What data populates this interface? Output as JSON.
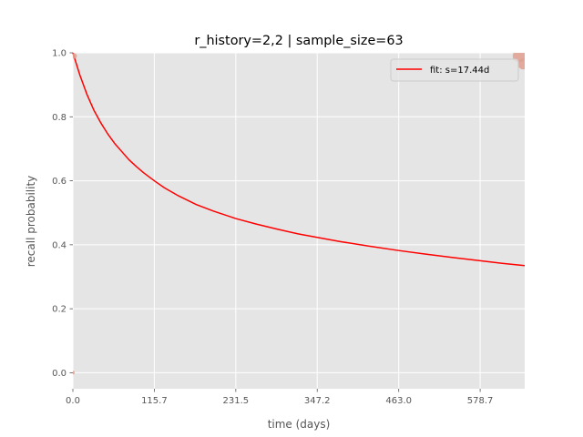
{
  "chart_data": {
    "type": "line",
    "title": "r_history=2,2 | sample_size=63",
    "xlabel": "time (days)",
    "ylabel": "recall probability",
    "xlim": [
      0,
      642
    ],
    "ylim": [
      -0.05,
      1.0
    ],
    "xticks": [
      0.0,
      115.7,
      231.5,
      347.2,
      463.0,
      578.7
    ],
    "xtick_labels": [
      "0.0",
      "115.7",
      "231.5",
      "347.2",
      "463.0",
      "578.7"
    ],
    "yticks": [
      0.0,
      0.2,
      0.4,
      0.6,
      0.8,
      1.0
    ],
    "ytick_labels": [
      "0.0",
      "0.2",
      "0.4",
      "0.6",
      "0.8",
      "1.0"
    ],
    "grid": true,
    "legend_position": "top-right",
    "series": [
      {
        "name": "fit: s=17.44d",
        "color": "#ff0000",
        "kind": "line",
        "x": [
          0,
          10,
          20,
          30,
          40,
          50,
          60,
          70,
          80,
          90,
          100,
          115.7,
          130,
          150,
          175,
          200,
          231.5,
          260,
          290,
          320,
          347.2,
          380,
          420,
          463.0,
          500,
          540,
          578.7,
          610,
          642
        ],
        "y": [
          1.0,
          0.93,
          0.87,
          0.82,
          0.78,
          0.745,
          0.715,
          0.69,
          0.665,
          0.645,
          0.626,
          0.6,
          0.578,
          0.553,
          0.526,
          0.505,
          0.482,
          0.465,
          0.449,
          0.434,
          0.423,
          0.41,
          0.396,
          0.382,
          0.371,
          0.36,
          0.35,
          0.342,
          0.335
        ]
      }
    ],
    "points": {
      "color": "#e0a090",
      "items": [
        {
          "x": 2,
          "y": 0.99,
          "size": 3
        },
        {
          "x": 0,
          "y": 0.0,
          "size": 2
        },
        {
          "x": 634,
          "y": 0.99,
          "size": 7
        },
        {
          "x": 640,
          "y": 0.965,
          "size": 6
        }
      ]
    }
  }
}
